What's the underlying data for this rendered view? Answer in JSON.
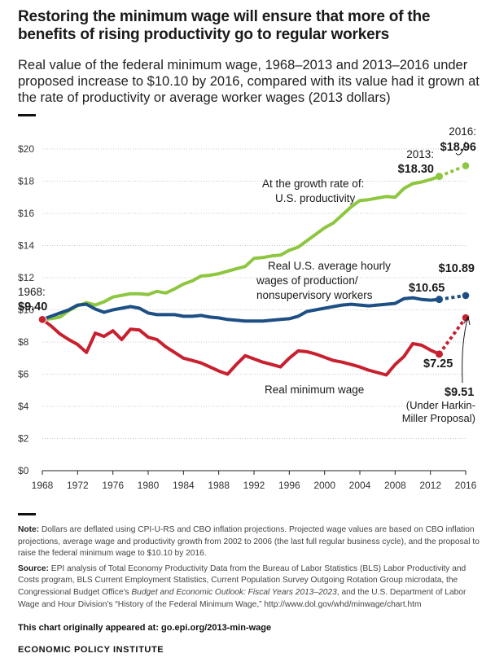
{
  "header": {
    "title": "Restoring the minimum wage will ensure that more of the benefits of rising productivity go to regular workers",
    "subtitle": "Real value of the federal minimum wage, 1968–2013 and 2013–2016 under proposed increase to $10.10 by 2016, compared with its value had it grown at the rate of productivity or average worker wages (2013 dollars)"
  },
  "colors": {
    "productivity": "#8dc63f",
    "wages": "#1d4f85",
    "minimum_wage": "#c8202f",
    "grid": "#c8c8c8",
    "axis": "#222222"
  },
  "chart_data": {
    "type": "line",
    "title": "",
    "xlabel": "",
    "ylabel": "",
    "xlim": [
      1968,
      2016
    ],
    "ylim": [
      0,
      20
    ],
    "x_ticks": [
      1968,
      1972,
      1976,
      1980,
      1984,
      1988,
      1992,
      1996,
      2000,
      2004,
      2008,
      2012,
      2016
    ],
    "y_ticks": [
      0,
      2,
      4,
      6,
      8,
      10,
      12,
      14,
      16,
      18,
      20
    ],
    "y_tick_labels": [
      "$0",
      "$2",
      "$4",
      "$6",
      "$8",
      "$10",
      "$12",
      "$14",
      "$16",
      "$18",
      "$20"
    ],
    "grid": true,
    "series": [
      {
        "key": "productivity",
        "x": [
          1968,
          1969,
          1970,
          1971,
          1972,
          1973,
          1974,
          1975,
          1976,
          1977,
          1978,
          1979,
          1980,
          1981,
          1982,
          1983,
          1984,
          1985,
          1986,
          1987,
          1988,
          1989,
          1990,
          1991,
          1992,
          1993,
          1994,
          1995,
          1996,
          1997,
          1998,
          1999,
          2000,
          2001,
          2002,
          2003,
          2004,
          2005,
          2006,
          2007,
          2008,
          2009,
          2010,
          2011,
          2012,
          2013
        ],
        "values": [
          9.4,
          9.45,
          9.55,
          9.95,
          10.25,
          10.45,
          10.3,
          10.5,
          10.8,
          10.9,
          11.0,
          11.0,
          10.95,
          11.15,
          11.05,
          11.3,
          11.6,
          11.8,
          12.1,
          12.15,
          12.25,
          12.4,
          12.55,
          12.7,
          13.2,
          13.25,
          13.35,
          13.4,
          13.7,
          13.9,
          14.3,
          14.7,
          15.1,
          15.4,
          15.9,
          16.4,
          16.8,
          16.85,
          16.95,
          17.05,
          17.0,
          17.55,
          17.85,
          17.95,
          18.1,
          18.3
        ],
        "projection_x": [
          2013,
          2016
        ],
        "projection_values": [
          18.3,
          18.96
        ]
      },
      {
        "key": "wages",
        "x": [
          1968,
          1969,
          1970,
          1971,
          1972,
          1973,
          1974,
          1975,
          1976,
          1977,
          1978,
          1979,
          1980,
          1981,
          1982,
          1983,
          1984,
          1985,
          1986,
          1987,
          1988,
          1989,
          1990,
          1991,
          1992,
          1993,
          1994,
          1995,
          1996,
          1997,
          1998,
          1999,
          2000,
          2001,
          2002,
          2003,
          2004,
          2005,
          2006,
          2007,
          2008,
          2009,
          2010,
          2011,
          2012,
          2013
        ],
        "values": [
          9.4,
          9.6,
          9.8,
          10.0,
          10.3,
          10.35,
          10.05,
          9.85,
          10.0,
          10.1,
          10.2,
          10.1,
          9.8,
          9.7,
          9.7,
          9.7,
          9.6,
          9.6,
          9.65,
          9.55,
          9.5,
          9.4,
          9.35,
          9.3,
          9.3,
          9.3,
          9.35,
          9.4,
          9.45,
          9.6,
          9.9,
          10.0,
          10.1,
          10.2,
          10.3,
          10.35,
          10.3,
          10.25,
          10.3,
          10.35,
          10.4,
          10.7,
          10.75,
          10.65,
          10.6,
          10.65
        ],
        "projection_x": [
          2013,
          2016
        ],
        "projection_values": [
          10.65,
          10.89
        ]
      },
      {
        "key": "minimum_wage",
        "x": [
          1968,
          1969,
          1970,
          1971,
          1972,
          1973,
          1974,
          1975,
          1976,
          1977,
          1978,
          1979,
          1980,
          1981,
          1982,
          1983,
          1984,
          1985,
          1986,
          1987,
          1988,
          1989,
          1990,
          1991,
          1992,
          1993,
          1994,
          1995,
          1996,
          1997,
          1998,
          1999,
          2000,
          2001,
          2002,
          2003,
          2004,
          2005,
          2006,
          2007,
          2008,
          2009,
          2010,
          2011,
          2012,
          2013
        ],
        "values": [
          9.4,
          9.0,
          8.5,
          8.15,
          7.85,
          7.35,
          8.55,
          8.35,
          8.7,
          8.15,
          8.8,
          8.75,
          8.3,
          8.15,
          7.7,
          7.35,
          7.0,
          6.85,
          6.7,
          6.45,
          6.2,
          6.0,
          6.6,
          7.15,
          6.95,
          6.75,
          6.6,
          6.45,
          7.0,
          7.45,
          7.4,
          7.25,
          7.05,
          6.85,
          6.75,
          6.6,
          6.45,
          6.25,
          6.1,
          5.95,
          6.6,
          7.1,
          7.9,
          7.8,
          7.5,
          7.25
        ],
        "projection_x": [
          2013,
          2016
        ],
        "projection_values": [
          7.25,
          9.51
        ]
      }
    ],
    "annotations": {
      "start_year": "1968:",
      "start_value": "$9.40",
      "productivity_2013_year": "2013:",
      "productivity_2013_value": "$18.30",
      "productivity_2016_year": "2016:",
      "productivity_2016_value": "$18.96",
      "productivity_label_1": "At the growth rate of:",
      "productivity_label_2": "U.S. productivity",
      "wages_label_1": "Real U.S. average hourly",
      "wages_label_2": "wages of production/",
      "wages_label_3": "nonsupervisory workers",
      "wages_2013_value": "$10.65",
      "wages_2016_value": "$10.89",
      "min_label": "Real minimum wage",
      "min_2013_value": "$7.25",
      "min_2016_value": "$9.51",
      "min_2016_note_1": "(Under Harkin-",
      "min_2016_note_2": "Miller Proposal)"
    }
  },
  "notes": {
    "note_label": "Note:",
    "note_text": "Dollars are deflated using CPI-U-RS and CBO inflation projections. Projected wage values are based on CBO inflation projections, average wage and productivity growth from 2002 to 2006 (the last full regular business cycle), and the proposal to raise the federal minimum wage to $10.10 by 2016.",
    "source_label": "Source:",
    "source_text_1": "EPI analysis of Total Economy Productivity Data from the Bureau of Labor Statistics (BLS) Labor Productivity and Costs program, BLS Current Employment Statistics, Current Population Survey Outgoing Rotation Group microdata, the Congressional Budget Office's",
    "source_italic": "Budget and Economic Outlook: Fiscal Years 2013–2023",
    "source_text_2": ", and the U.S. Department of Labor Wage and Hour Division's “History of the Federal Minimum Wage,” http://www.dol.gov/whd/minwage/chart.htm"
  },
  "footer": {
    "appeared_at": "This chart originally appeared at: go.epi.org/2013-min-wage",
    "org": "ECONOMIC POLICY INSTITUTE"
  }
}
